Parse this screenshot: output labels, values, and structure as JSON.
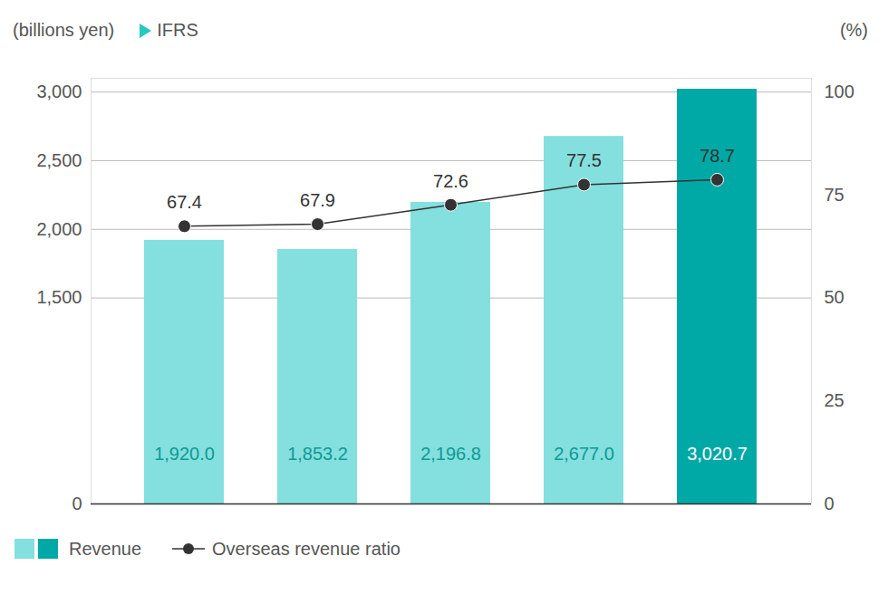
{
  "chart_data": {
    "type": "bar",
    "annotations": [
      "IFRS"
    ],
    "y_label": "(billions yen)",
    "y2_label": "(%)",
    "categories": [
      null,
      null,
      null,
      null,
      null
    ],
    "series": [
      {
        "name": "Revenue",
        "type": "bar",
        "colors": [
          "#84dfdf",
          "#84dfdf",
          "#84dfdf",
          "#84dfdf",
          "#00a9a5"
        ],
        "values": [
          1920.0,
          1853.2,
          2196.8,
          2677.0,
          3020.7
        ],
        "value_labels": [
          "1,920.0",
          "1,853.2",
          "2,196.8",
          "2,677.0",
          "3,020.7"
        ]
      },
      {
        "name": "Overseas revenue ratio",
        "type": "line",
        "axis": "y2",
        "color": "#333333",
        "marker": "circle",
        "values": [
          67.4,
          67.9,
          72.6,
          77.5,
          78.7
        ]
      }
    ],
    "ylim": [
      0,
      3100
    ],
    "yticks": [
      0,
      {
        "value": 1500,
        "label": "1,500"
      },
      {
        "value": 2000,
        "label": "2,000"
      },
      {
        "value": 2500,
        "label": "2,500"
      },
      {
        "value": 3000,
        "label": "3,000"
      }
    ],
    "y2lim": [
      0,
      103.3
    ],
    "y2ticks": [
      0,
      25,
      50,
      75,
      100
    ],
    "grid": true,
    "data_labels": true,
    "legend": "bottom",
    "tick_labels": "y"
  }
}
